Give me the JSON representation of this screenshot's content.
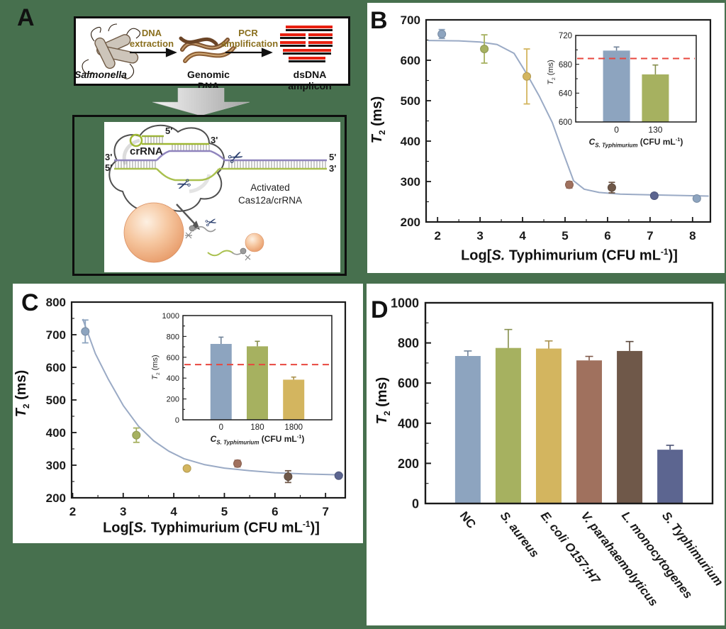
{
  "background_color": "#47704E",
  "shared": {
    "t2_title": {
      "t": "T",
      "sub": "2",
      "rest": " (ms)"
    },
    "log_title": {
      "pre": "Log[",
      "s": "S.",
      "mid": " Typhimurium (CFU mL",
      "sup": "-1",
      "post": ")]"
    },
    "conc_title": {
      "c": "C",
      "sub": "S. Typhimurium",
      "rest": " (CFU mL",
      "sup": "-1",
      "post": ")"
    }
  },
  "panels": {
    "a": {
      "label": "A",
      "stage1": "Salmonella",
      "stage2": "Genomic DNA",
      "stage3": "dsDNA amplicon",
      "arrow1_line1": "DNA",
      "arrow1_line2": "extraction",
      "arrow2_line1": "PCR",
      "arrow2_line2": "amplification",
      "crRNA": "crRNA",
      "prime_top5": "5'",
      "prime_top3": "3'",
      "prime_left3": "3'",
      "prime_left5": "5'",
      "prime_right5": "5'",
      "prime_right3": "3'",
      "activated1": "Activated",
      "activated2": "Cas12a/crRNA"
    },
    "b": {
      "label": "B"
    },
    "c": {
      "label": "C"
    },
    "d": {
      "label": "D"
    }
  },
  "colors": {
    "series": [
      "#8DA4BF",
      "#A6B160",
      "#D3B55F",
      "#A0715E",
      "#6F5849",
      "#5C6590"
    ],
    "curve": "#9AAAC5",
    "refline": "#E8473F",
    "amplicon_red": "#E82010",
    "gold_text": "#8A6F1E"
  },
  "chart_data": [
    {
      "id": "chartB",
      "panel": "B",
      "type": "scatter",
      "xlabel": "Log[S. Typhimurium (CFU mL-1)]",
      "ylabel": "T2 (ms)",
      "xlim": [
        1.73,
        8.42
      ],
      "ylim": [
        200,
        700
      ],
      "xticks": [
        2,
        3,
        4,
        5,
        6,
        7,
        8
      ],
      "yticks": [
        200,
        300,
        400,
        500,
        600,
        700
      ],
      "minor_x": 0.5,
      "minor_y": 50,
      "curve_color": "#9AAAC5",
      "curve": [
        [
          1.78,
          649
        ],
        [
          2.5,
          648
        ],
        [
          3.0,
          645
        ],
        [
          3.4,
          639
        ],
        [
          3.8,
          617
        ],
        [
          4.1,
          566
        ],
        [
          4.4,
          510
        ],
        [
          4.7,
          446
        ],
        [
          4.95,
          373
        ],
        [
          5.2,
          302
        ],
        [
          5.45,
          281
        ],
        [
          5.8,
          273
        ],
        [
          6.3,
          269
        ],
        [
          7.0,
          267
        ],
        [
          8.38,
          264
        ]
      ],
      "points": [
        {
          "x": 2.1,
          "y": 665,
          "err": 11,
          "color": "#8DA4BF"
        },
        {
          "x": 3.1,
          "y": 628,
          "err": 35,
          "color": "#A6B160"
        },
        {
          "x": 4.1,
          "y": 560,
          "err": 68,
          "color": "#D3B55F"
        },
        {
          "x": 5.1,
          "y": 292,
          "err": 8,
          "color": "#A0715E"
        },
        {
          "x": 6.1,
          "y": 285,
          "err": 13,
          "color": "#6F5849"
        },
        {
          "x": 7.1,
          "y": 265,
          "err": 6,
          "color": "#5C6590"
        },
        {
          "x": 8.1,
          "y": 258,
          "err": 5,
          "color": "#8DA4BF"
        }
      ]
    },
    {
      "id": "chartBinset",
      "panel": "B inset",
      "type": "bar",
      "xlabel": "C S. Typhimurium (CFU mL-1)",
      "ylabel": "T2 (ms)",
      "ylim": [
        600,
        720
      ],
      "yticks": [
        600,
        640,
        680,
        720
      ],
      "minor_y": 20,
      "categories": [
        "0",
        "130"
      ],
      "bars": [
        {
          "label": "0",
          "value": 699,
          "err": 5,
          "color": "#8DA4BF",
          "italic": false
        },
        {
          "label": "130",
          "value": 666,
          "err": 13,
          "color": "#A6B160",
          "italic": false
        }
      ],
      "refline": {
        "y": 688,
        "color": "#E8473F",
        "style": "dashed"
      }
    },
    {
      "id": "chartC",
      "panel": "C",
      "type": "scatter",
      "xlabel": "Log[S. Typhimurium (CFU mL-1)]",
      "ylabel": "T2 (ms)",
      "xlim": [
        1.98,
        7.39
      ],
      "ylim": [
        200,
        800
      ],
      "xticks": [
        2,
        3,
        4,
        5,
        6,
        7
      ],
      "yticks": [
        200,
        300,
        400,
        500,
        600,
        700,
        800
      ],
      "minor_x": 0.5,
      "minor_y": 50,
      "curve_color": "#9AAAC5",
      "curve": [
        [
          2.2,
          748
        ],
        [
          2.45,
          642
        ],
        [
          2.7,
          565
        ],
        [
          3.0,
          483
        ],
        [
          3.3,
          420
        ],
        [
          3.6,
          375
        ],
        [
          3.9,
          343
        ],
        [
          4.2,
          320
        ],
        [
          4.6,
          302
        ],
        [
          5.0,
          291
        ],
        [
          5.5,
          283
        ],
        [
          6.0,
          277
        ],
        [
          6.6,
          273
        ],
        [
          7.35,
          270
        ]
      ],
      "points": [
        {
          "x": 2.25,
          "y": 710,
          "err": 35,
          "color": "#8DA4BF"
        },
        {
          "x": 3.26,
          "y": 392,
          "err": 22,
          "color": "#A6B160"
        },
        {
          "x": 4.26,
          "y": 290,
          "err": 6,
          "color": "#D3B55F"
        },
        {
          "x": 5.26,
          "y": 305,
          "err": 10,
          "color": "#A0715E"
        },
        {
          "x": 6.26,
          "y": 265,
          "err": 18,
          "color": "#6F5849"
        },
        {
          "x": 7.26,
          "y": 268,
          "err": 6,
          "color": "#5C6590"
        }
      ]
    },
    {
      "id": "chartCinset",
      "panel": "C inset",
      "type": "bar",
      "xlabel": "C S. Typhimurium (CFU mL-1)",
      "ylabel": "T2 (ms)",
      "ylim": [
        0,
        1000
      ],
      "yticks": [
        0,
        200,
        400,
        600,
        800,
        1000
      ],
      "minor_y": 100,
      "categories": [
        "0",
        "180",
        "1800"
      ],
      "bars": [
        {
          "label": "0",
          "value": 728,
          "err": 65,
          "color": "#8DA4BF",
          "italic": false
        },
        {
          "label": "180",
          "value": 705,
          "err": 48,
          "color": "#A6B160",
          "italic": false
        },
        {
          "label": "1800",
          "value": 385,
          "err": 25,
          "color": "#D3B55F",
          "italic": false
        }
      ],
      "refline": {
        "y": 530,
        "color": "#E8473F",
        "style": "dashed"
      }
    },
    {
      "id": "chartD",
      "panel": "D",
      "type": "bar",
      "xlabel": "",
      "ylabel": "T2 (ms)",
      "ylim": [
        0,
        1000
      ],
      "yticks": [
        0,
        200,
        400,
        600,
        800,
        1000
      ],
      "minor_y": 100,
      "categories": [
        "NC",
        "S. aureus",
        "E. coli O157:H7",
        "V. parahaemolyticus",
        "L. monocytogenes",
        "S. Typhimurium"
      ],
      "bars": [
        {
          "label": "NC",
          "value": 735,
          "err": 25,
          "color": "#8DA4BF",
          "italic": false
        },
        {
          "label": "S. aureus",
          "value": 775,
          "err": 92,
          "color": "#A6B160",
          "italic": true
        },
        {
          "label": "E. coli O157:H7",
          "value": 772,
          "err": 38,
          "color": "#D3B55F",
          "italic": true
        },
        {
          "label": "V. parahaemolyticus",
          "value": 713,
          "err": 20,
          "color": "#A0715E",
          "italic": true
        },
        {
          "label": "L. monocytogenes",
          "value": 760,
          "err": 47,
          "color": "#6F5849",
          "italic": true
        },
        {
          "label": "S. Typhimurium",
          "value": 268,
          "err": 22,
          "color": "#5C6590",
          "italic": true
        }
      ]
    }
  ]
}
